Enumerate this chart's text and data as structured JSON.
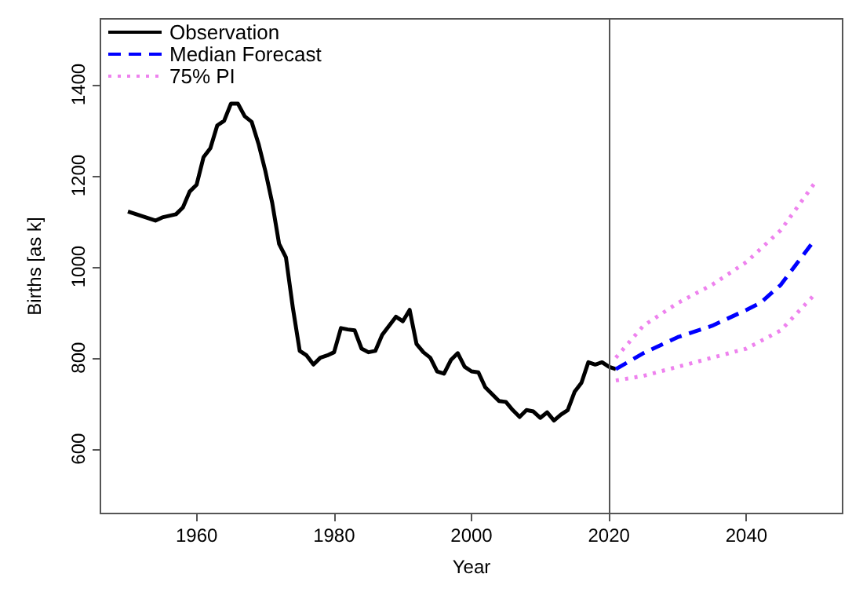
{
  "chart_data": {
    "type": "line",
    "xlabel": "Year",
    "ylabel": "Births [as k]",
    "xlim": [
      1946,
      2054
    ],
    "xticks": [
      1960,
      1980,
      2000,
      2020,
      2040
    ],
    "ylim": [
      458,
      1544
    ],
    "yticks": [
      600,
      800,
      1000,
      1200,
      1400
    ],
    "grid": false,
    "legend": "top left",
    "marker": "none",
    "ref_lines": [
      {
        "axis": "x",
        "value": 2020,
        "color": "#555555"
      }
    ],
    "series": [
      {
        "name": "Observation",
        "color": "#000000",
        "line_style": "solid",
        "x": [
          1950,
          1952,
          1954,
          1955,
          1957,
          1958,
          1959,
          1960,
          1961,
          1962,
          1963,
          1964,
          1965,
          1966,
          1967,
          1968,
          1969,
          1970,
          1971,
          1972,
          1973,
          1974,
          1975,
          1976,
          1977,
          1978,
          1979,
          1980,
          1981,
          1982,
          1983,
          1984,
          1985,
          1986,
          1987,
          1988,
          1989,
          1990,
          1991,
          1992,
          1993,
          1994,
          1995,
          1996,
          1997,
          1998,
          1999,
          2000,
          2001,
          2002,
          2003,
          2004,
          2005,
          2006,
          2007,
          2008,
          2009,
          2010,
          2011,
          2012,
          2013,
          2014,
          2015,
          2016,
          2017,
          2018,
          2019,
          2020,
          2021
        ],
        "values": [
          1121,
          1111,
          1101,
          1108,
          1115,
          1130,
          1165,
          1180,
          1240,
          1260,
          1310,
          1320,
          1358,
          1358,
          1330,
          1318,
          1270,
          1210,
          1140,
          1050,
          1020,
          910,
          815,
          805,
          785,
          800,
          805,
          812,
          865,
          862,
          860,
          820,
          812,
          815,
          850,
          870,
          890,
          880,
          905,
          830,
          812,
          800,
          770,
          765,
          795,
          810,
          780,
          770,
          768,
          735,
          720,
          705,
          703,
          685,
          670,
          685,
          682,
          668,
          680,
          662,
          675,
          685,
          725,
          745,
          790,
          785,
          790,
          780,
          775
        ]
      },
      {
        "name": "Median Forecast",
        "color": "#0000ff",
        "line_style": "dashed",
        "x": [
          2021,
          2025,
          2030,
          2035,
          2040,
          2042,
          2045,
          2050
        ],
        "values": [
          775,
          810,
          845,
          870,
          905,
          920,
          960,
          1060
        ]
      },
      {
        "name": "75% PI",
        "color": "#ee82ee",
        "line_style": "dotted",
        "x": [
          2021,
          2025,
          2030,
          2035,
          2040,
          2045,
          2050
        ],
        "values": [
          800,
          870,
          920,
          960,
          1010,
          1080,
          1185
        ]
      },
      {
        "color": "#ee82ee",
        "line_style": "dotted",
        "x": [
          2021,
          2025,
          2030,
          2035,
          2040,
          2045,
          2050
        ],
        "values": [
          750,
          760,
          780,
          800,
          820,
          860,
          940
        ]
      }
    ]
  }
}
